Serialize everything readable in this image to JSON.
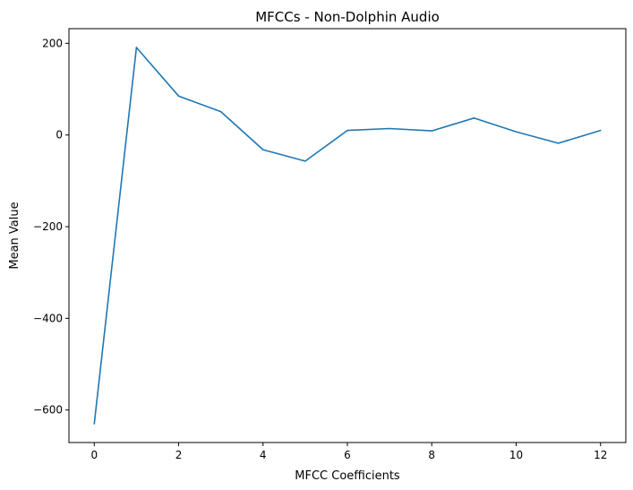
{
  "chart_data": {
    "type": "line",
    "title": "MFCCs - Non-Dolphin Audio",
    "xlabel": "MFCC Coefficients",
    "ylabel": "Mean Value",
    "x": [
      0,
      1,
      2,
      3,
      4,
      5,
      6,
      7,
      8,
      9,
      10,
      11,
      12
    ],
    "series": [
      {
        "values": [
          -630,
          191,
          85,
          51,
          -32,
          -57,
          10,
          14,
          9,
          37,
          7,
          -18,
          10
        ]
      }
    ],
    "xlim": [
      -0.6,
      12.6
    ],
    "ylim": [
      -671,
      232
    ],
    "xticks": [
      0,
      2,
      4,
      6,
      8,
      10,
      12
    ],
    "yticks": [
      200,
      0,
      -200,
      -400,
      -600
    ],
    "ytick_labels": [
      "200",
      "0",
      "−200",
      "−400",
      "−600"
    ],
    "grid": false,
    "color": "#1f77b4"
  }
}
